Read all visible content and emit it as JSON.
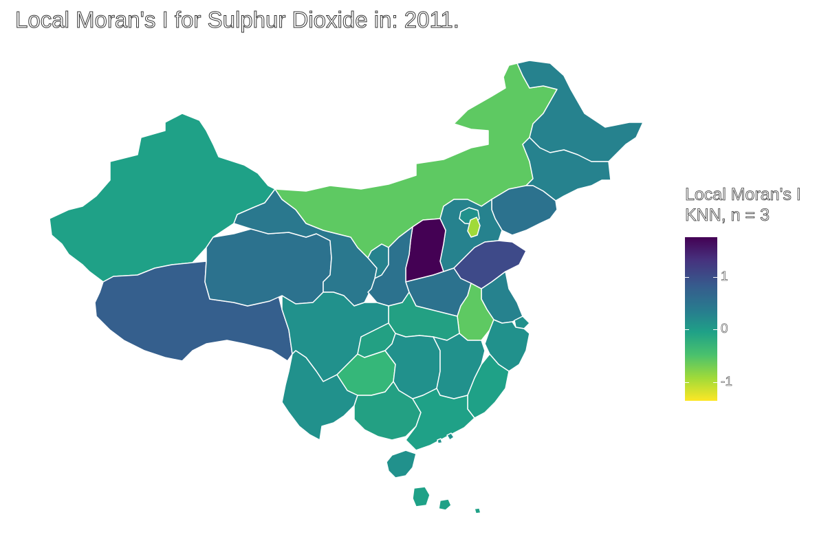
{
  "title": "Local Moran's I for Sulphur Dioxide in: 2011.",
  "legend": {
    "title_line1": "Local Moran's I",
    "title_line2": "KNN, n = 3",
    "ticks": [
      {
        "label": "1",
        "value": 1
      },
      {
        "label": "0",
        "value": 0
      },
      {
        "label": "-1",
        "value": -1
      }
    ],
    "range": [
      -1.35,
      1.75
    ]
  },
  "colors": {
    "dark_purple": "#440154",
    "indigo": "#3e4a89",
    "blue": "#355f8d",
    "teal_blue": "#2c728e",
    "teal": "#26828e",
    "teal_green": "#21918c",
    "green_teal": "#1fa187",
    "green": "#35b779",
    "light_green": "#5ec962",
    "yellow_green": "#a0da39"
  },
  "regions": [
    {
      "name": "Xinjiang",
      "color": "#1fa187"
    },
    {
      "name": "Tibet",
      "color": "#355f8d"
    },
    {
      "name": "Qinghai",
      "color": "#2c728e"
    },
    {
      "name": "Gansu",
      "color": "#2a788e"
    },
    {
      "name": "Inner Mongolia",
      "color": "#5ec962"
    },
    {
      "name": "Heilongjiang",
      "color": "#26828e"
    },
    {
      "name": "Jilin",
      "color": "#26828e"
    },
    {
      "name": "Liaoning",
      "color": "#2c728e"
    },
    {
      "name": "Beijing",
      "color": "#21918c"
    },
    {
      "name": "Tianjin",
      "color": "#a0da39"
    },
    {
      "name": "Hebei",
      "color": "#26828e"
    },
    {
      "name": "Shanxi",
      "color": "#440154"
    },
    {
      "name": "Shandong",
      "color": "#3e4a89"
    },
    {
      "name": "Ningxia",
      "color": "#26828e"
    },
    {
      "name": "Shaanxi",
      "color": "#2c728e"
    },
    {
      "name": "Henan",
      "color": "#2c728e"
    },
    {
      "name": "Jiangsu",
      "color": "#26828e"
    },
    {
      "name": "Anhui",
      "color": "#5ec962"
    },
    {
      "name": "Shanghai",
      "color": "#21918c"
    },
    {
      "name": "Zhejiang",
      "color": "#21918c"
    },
    {
      "name": "Hubei",
      "color": "#23a083"
    },
    {
      "name": "Sichuan",
      "color": "#21918c"
    },
    {
      "name": "Chongqing",
      "color": "#23a083"
    },
    {
      "name": "Guizhou",
      "color": "#35b779"
    },
    {
      "name": "Hunan",
      "color": "#21918c"
    },
    {
      "name": "Jiangxi",
      "color": "#21918c"
    },
    {
      "name": "Fujian",
      "color": "#1fa187"
    },
    {
      "name": "Yunnan",
      "color": "#21918c"
    },
    {
      "name": "Guangxi",
      "color": "#23a083"
    },
    {
      "name": "Guangdong",
      "color": "#1fa187"
    },
    {
      "name": "Hainan",
      "color": "#21918c"
    },
    {
      "name": "Taiwan",
      "color": "#1fa187"
    },
    {
      "name": "Hong Kong",
      "color": "#21918c"
    },
    {
      "name": "Macau",
      "color": "#21918c"
    }
  ]
}
